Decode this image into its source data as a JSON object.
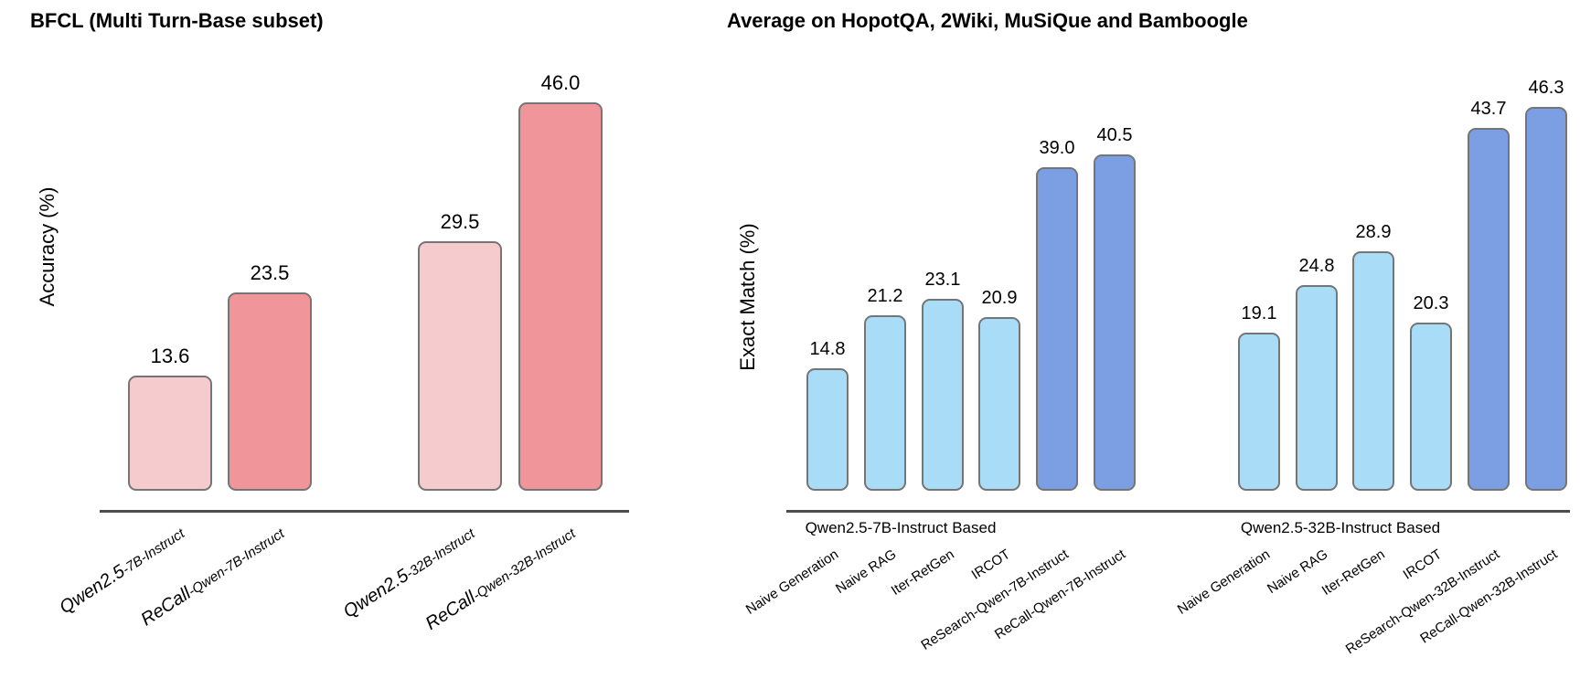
{
  "chart_data": [
    {
      "type": "bar",
      "title": "BFCL (Multi Turn-Base subset)",
      "xlabel": "",
      "ylabel": "Accuracy (%)",
      "ylim": [
        0,
        48
      ],
      "grid": false,
      "legend": null,
      "tick_label_style": "italic, rotated ~33deg, model name large + variant suffix small",
      "categories": [
        "Qwen2.5-7B-Instruct",
        "ReCall-Qwen-7B-Instruct",
        "Qwen2.5-32B-Instruct",
        "ReCall-Qwen-32B-Instruct"
      ],
      "categories_rich": [
        {
          "main": "Qwen2.5",
          "suffix": "-7B-Instruct"
        },
        {
          "main": "ReCall",
          "suffix": "-Qwen-7B-Instruct"
        },
        {
          "main": "Qwen2.5",
          "suffix": "-32B-Instruct"
        },
        {
          "main": "ReCall",
          "suffix": "-Qwen-32B-Instruct"
        }
      ],
      "values": [
        13.6,
        23.5,
        29.5,
        46.0
      ],
      "value_labels": [
        "13.6",
        "23.5",
        "29.5",
        "46.0"
      ],
      "bar_series": [
        "base",
        "recall",
        "base",
        "recall"
      ],
      "palette": {
        "base": "#F5CBCD",
        "recall": "#F0969A"
      },
      "edge_color": "#757575"
    },
    {
      "type": "bar",
      "title": "Average on HopotQA, 2Wiki, MuSiQue and Bamboogle",
      "xlabel": "",
      "ylabel": "Exact Match (%)",
      "ylim": [
        0,
        48
      ],
      "grid": false,
      "legend": null,
      "tick_label_style": "rotated ~33deg, regular",
      "groups": [
        {
          "label": "Qwen2.5-7B-Instruct Based",
          "categories": [
            "Naive Generation",
            "Naive RAG",
            "Iter-RetGen",
            "IRCOT",
            "ReSearch-Qwen-7B-Instruct",
            "ReCall-Qwen-7B-Instruct"
          ],
          "values": [
            14.8,
            21.2,
            23.1,
            20.9,
            39.0,
            40.5
          ],
          "value_labels": [
            "14.8",
            "21.2",
            "23.1",
            "20.9",
            "39.0",
            "40.5"
          ],
          "bar_series": [
            "baseline",
            "baseline",
            "baseline",
            "baseline",
            "ours",
            "ours"
          ]
        },
        {
          "label": "Qwen2.5-32B-Instruct Based",
          "categories": [
            "Naive Generation",
            "Naive RAG",
            "Iter-RetGen",
            "IRCOT",
            "ReSearch-Qwen-32B-Instruct",
            "ReCall-Qwen-32B-Instruct"
          ],
          "values": [
            19.1,
            24.8,
            28.9,
            20.3,
            43.7,
            46.3
          ],
          "value_labels": [
            "19.1",
            "24.8",
            "28.9",
            "20.3",
            "43.7",
            "46.3"
          ],
          "bar_series": [
            "baseline",
            "baseline",
            "baseline",
            "baseline",
            "ours",
            "ours"
          ]
        }
      ],
      "palette": {
        "baseline": "#A9DDF7",
        "ours": "#7C9EE3"
      },
      "edge_color": "#757575"
    }
  ]
}
